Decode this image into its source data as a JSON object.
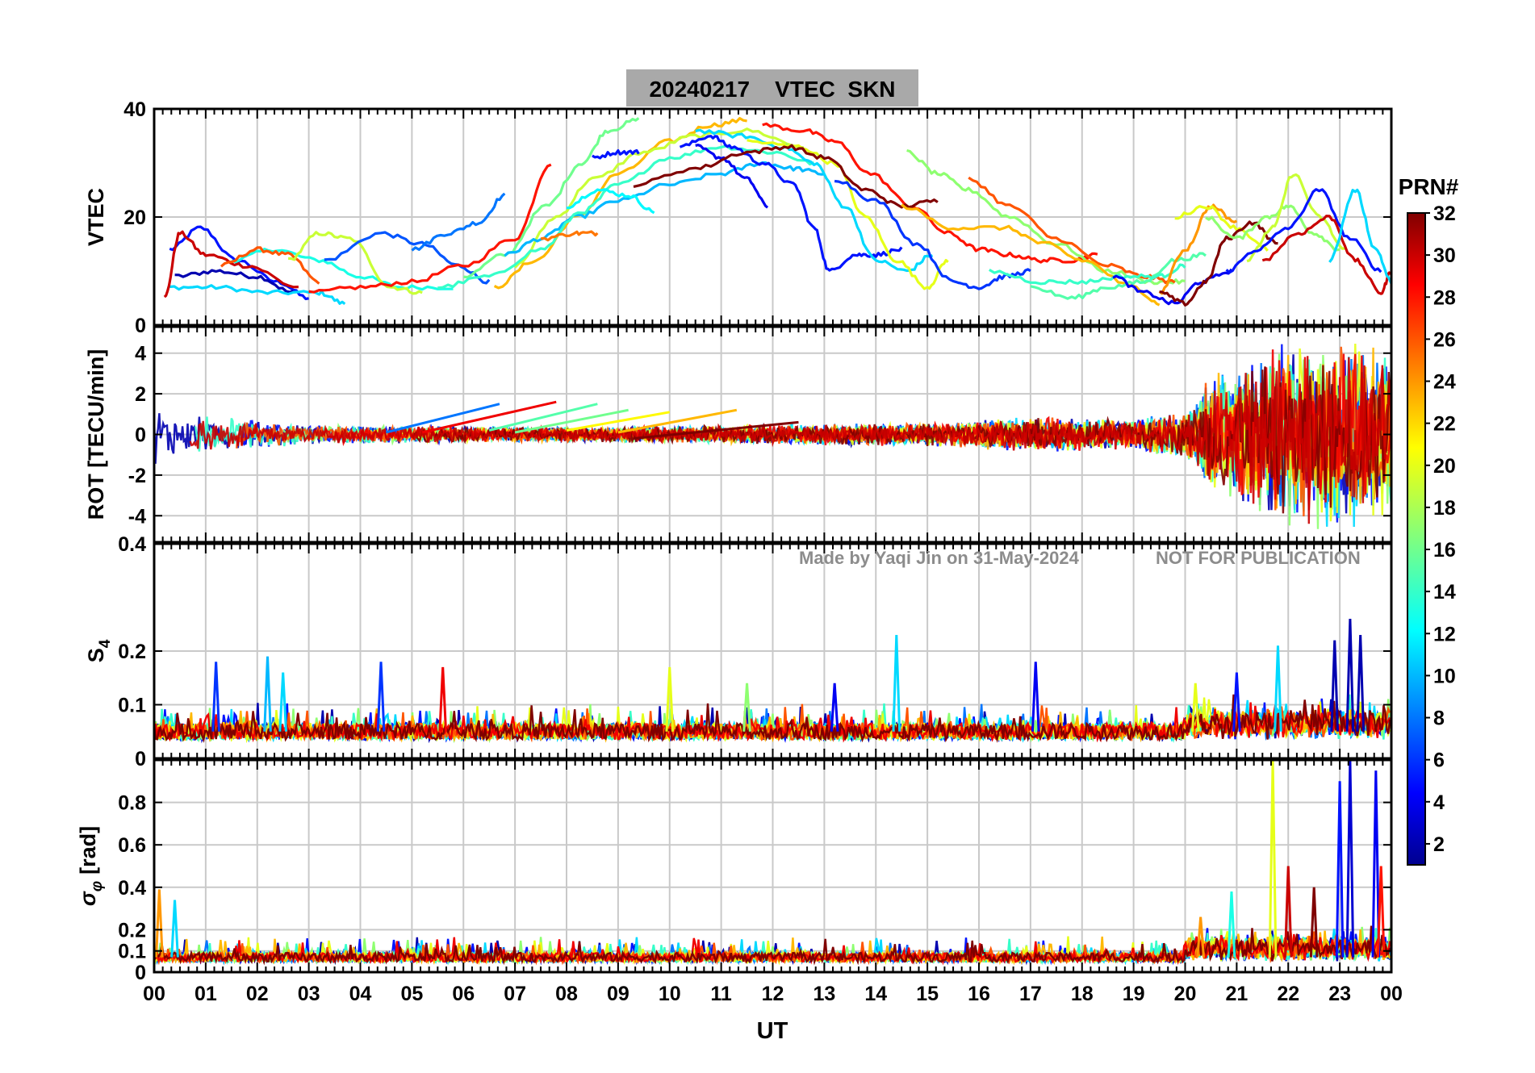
{
  "title": "20240217    VTEC  SKN",
  "watermark": {
    "left": "Made by Yaqi Jin on 31-May-2024",
    "right": "NOT FOR PUBLICATION"
  },
  "xlabel": "UT",
  "xticks": [
    "00",
    "01",
    "02",
    "03",
    "04",
    "05",
    "06",
    "07",
    "08",
    "09",
    "10",
    "11",
    "12",
    "13",
    "14",
    "15",
    "16",
    "17",
    "18",
    "19",
    "20",
    "21",
    "22",
    "23",
    "00"
  ],
  "colorbar": {
    "title": "PRN#",
    "ticks": [
      "2",
      "4",
      "6",
      "8",
      "10",
      "12",
      "14",
      "16",
      "18",
      "20",
      "22",
      "24",
      "26",
      "28",
      "30",
      "32"
    ],
    "range": [
      1,
      32
    ],
    "colormap": "jet"
  },
  "panels": [
    {
      "id": "vtec",
      "ylabel": "VTEC",
      "ylim": [
        0,
        40
      ],
      "yticks": [
        0,
        20,
        40
      ],
      "ytick_labels": [
        "0",
        "20",
        "40"
      ]
    },
    {
      "id": "rot",
      "ylabel": "ROT [TECU/min]",
      "ylim": [
        -5.3,
        5.3
      ],
      "yticks": [
        -4,
        -2,
        0,
        2,
        4
      ],
      "ytick_labels": [
        "-4",
        "-2",
        "0",
        "2",
        "4"
      ]
    },
    {
      "id": "s4",
      "ylabel": "S",
      "ylabel_sub": "4",
      "ylim": [
        0,
        0.4
      ],
      "yticks": [
        0,
        0.1,
        0.2,
        0.4
      ],
      "ytick_labels": [
        "0",
        "0.1",
        "0.2",
        "0.4"
      ]
    },
    {
      "id": "sigma",
      "ylabel": "σ",
      "ylabel_sub": "φ",
      "ylabel_suffix": "[rad]",
      "ylim": [
        0,
        1
      ],
      "yticks": [
        0,
        0.1,
        0.2,
        0.4,
        0.6,
        0.8
      ],
      "ytick_labels": [
        "0",
        "0.1",
        "0.2",
        "0.4",
        "0.6",
        "0.8"
      ]
    }
  ],
  "chart_data": {
    "type": "line",
    "x_unit": "UT hours",
    "xlim": [
      0,
      24
    ],
    "color_by": "PRN",
    "vtec_tracks": [
      {
        "prn": 5,
        "x": [
          0.3,
          0.9,
          1.6,
          2.4,
          3.0
        ],
        "y": [
          14,
          18,
          12,
          8,
          5
        ]
      },
      {
        "prn": 2,
        "x": [
          0.4,
          1.2,
          2.0,
          2.7
        ],
        "y": [
          9,
          10,
          9,
          6
        ]
      },
      {
        "prn": 11,
        "x": [
          0.3,
          1.2,
          2.2,
          3.2,
          3.7
        ],
        "y": [
          7,
          7,
          6,
          6,
          4
        ]
      },
      {
        "prn": 13,
        "x": [
          1.5,
          2.3,
          3.2,
          4.0,
          4.8,
          5.8
        ],
        "y": [
          12,
          14,
          12,
          9,
          7,
          7
        ]
      },
      {
        "prn": 30,
        "x": [
          0.2,
          0.5,
          1.0,
          1.8,
          2.8
        ],
        "y": [
          5,
          17,
          13,
          11,
          7
        ]
      },
      {
        "prn": 26,
        "x": [
          1.3,
          2.0,
          2.6,
          3.2
        ],
        "y": [
          11,
          14,
          13,
          8
        ]
      },
      {
        "prn": 19,
        "x": [
          2.6,
          3.2,
          3.8,
          4.6,
          5.2
        ],
        "y": [
          12,
          17,
          16,
          7,
          6
        ]
      },
      {
        "prn": 7,
        "x": [
          3.3,
          4.4,
          5.2,
          5.9,
          6.5
        ],
        "y": [
          12,
          17,
          15,
          11,
          8
        ]
      },
      {
        "prn": 28,
        "x": [
          3.0,
          4.0,
          5.0,
          6.0,
          7.0,
          7.7
        ],
        "y": [
          6,
          7,
          8,
          11,
          16,
          30
        ]
      },
      {
        "prn": 8,
        "x": [
          5.0,
          5.7,
          6.3,
          6.8
        ],
        "y": [
          14,
          17,
          19,
          24
        ]
      },
      {
        "prn": 23,
        "x": [
          6.6,
          7.4,
          8.2,
          9.0,
          10.0,
          10.8,
          11.5
        ],
        "y": [
          7,
          12,
          20,
          28,
          34,
          37,
          38
        ]
      },
      {
        "prn": 16,
        "x": [
          6.0,
          6.8,
          7.6,
          8.3,
          8.8,
          9.4
        ],
        "y": [
          9,
          13,
          22,
          30,
          36,
          38
        ]
      },
      {
        "prn": 19,
        "x": [
          7.0,
          7.8,
          8.5,
          9.5,
          10.5,
          11.5,
          12.6
        ],
        "y": [
          11,
          20,
          27,
          32,
          35,
          36,
          33
        ]
      },
      {
        "prn": 10,
        "x": [
          6.8,
          7.5,
          8.2,
          9.0,
          10.0,
          11.0,
          11.8,
          12.4,
          13.0
        ],
        "y": [
          13,
          16,
          20,
          23,
          26,
          28,
          30,
          29,
          28
        ]
      },
      {
        "prn": 14,
        "x": [
          5.5,
          6.5,
          7.5,
          8.3,
          9.0,
          10.0,
          11.0,
          12.0,
          12.8
        ],
        "y": [
          7,
          9,
          14,
          21,
          26,
          31,
          33,
          32,
          30
        ]
      },
      {
        "prn": 5,
        "x": [
          8.5,
          9.0,
          9.4
        ],
        "y": [
          31,
          32,
          32
        ]
      },
      {
        "prn": 25,
        "x": [
          7.5,
          8.2,
          8.6
        ],
        "y": [
          16,
          17,
          17
        ]
      },
      {
        "prn": 12,
        "x": [
          8.0,
          8.6,
          9.2,
          9.7
        ],
        "y": [
          22,
          25,
          24,
          21
        ]
      },
      {
        "prn": 5,
        "x": [
          10.2,
          10.8,
          11.2,
          11.8,
          12.4,
          12.8,
          13.1,
          13.6,
          14.0,
          14.5
        ],
        "y": [
          33,
          35,
          33,
          30,
          26,
          18,
          10,
          13,
          13,
          14
        ]
      },
      {
        "prn": 4,
        "x": [
          10.5,
          11.0,
          11.5,
          11.9
        ],
        "y": [
          33,
          31,
          27,
          22
        ]
      },
      {
        "prn": 11,
        "x": [
          10.5,
          11.4,
          12.2,
          12.8,
          13.4,
          14.0,
          14.6,
          15.1
        ],
        "y": [
          36,
          35,
          33,
          30,
          22,
          12,
          10,
          13
        ]
      },
      {
        "prn": 20,
        "x": [
          11.5,
          12.5,
          13.2,
          13.8,
          14.4,
          15.0,
          15.4
        ],
        "y": [
          34,
          33,
          30,
          20,
          12,
          7,
          12
        ]
      },
      {
        "prn": 28,
        "x": [
          11.8,
          12.6,
          13.2,
          13.9,
          14.7,
          15.4,
          16.0,
          16.6,
          17.2,
          17.8,
          18.3
        ],
        "y": [
          37,
          36,
          34,
          28,
          22,
          17,
          14,
          13,
          12,
          12,
          13
        ]
      },
      {
        "prn": 32,
        "x": [
          9.3,
          10.5,
          11.5,
          12.3,
          13.0,
          13.8,
          14.5,
          15.2
        ],
        "y": [
          26,
          29,
          32,
          33,
          31,
          25,
          22,
          23
        ]
      },
      {
        "prn": 6,
        "x": [
          13.2,
          14.0,
          14.8,
          15.5,
          16.0,
          16.5,
          17.0
        ],
        "y": [
          27,
          23,
          15,
          8,
          7,
          9,
          10
        ]
      },
      {
        "prn": 17,
        "x": [
          14.6,
          15.2,
          15.8,
          16.6,
          17.5,
          18.5,
          19.4,
          20.0
        ],
        "y": [
          32,
          28,
          25,
          20,
          15,
          10,
          8,
          8
        ]
      },
      {
        "prn": 26,
        "x": [
          15.8,
          16.6,
          17.5,
          18.5,
          19.2,
          19.8
        ],
        "y": [
          27,
          22,
          16,
          11,
          9,
          8
        ]
      },
      {
        "prn": 23,
        "x": [
          14.5,
          15.5,
          16.5,
          17.3,
          18.0,
          19.0,
          19.5
        ],
        "y": [
          22,
          18,
          18,
          15,
          12,
          7,
          4
        ]
      },
      {
        "prn": 15,
        "x": [
          17.0,
          17.8,
          18.5,
          19.2,
          19.8,
          20.4
        ],
        "y": [
          7,
          5,
          7,
          8,
          12,
          13
        ]
      },
      {
        "prn": 14,
        "x": [
          16.2,
          17.2,
          18.0,
          18.8,
          19.5,
          20.0
        ],
        "y": [
          10,
          8,
          8,
          9,
          9,
          11
        ]
      },
      {
        "prn": 4,
        "x": [
          18.6,
          19.2,
          19.8,
          20.3,
          20.9
        ],
        "y": [
          9,
          6,
          4,
          8,
          10
        ]
      },
      {
        "prn": 24,
        "x": [
          19.5,
          20.0,
          20.5,
          21.0
        ],
        "y": [
          6,
          14,
          22,
          19
        ]
      },
      {
        "prn": 20,
        "x": [
          19.8,
          20.4,
          21.0,
          21.6
        ],
        "y": [
          20,
          22,
          18,
          14
        ]
      },
      {
        "prn": 32,
        "x": [
          19.5,
          20.0,
          20.4,
          20.8,
          21.3,
          21.8
        ],
        "y": [
          6,
          4,
          8,
          16,
          19,
          15
        ]
      },
      {
        "prn": 17,
        "x": [
          20.4,
          21.0,
          21.6,
          22.0,
          22.5,
          23.0
        ],
        "y": [
          20,
          16,
          20,
          22,
          17,
          14
        ]
      },
      {
        "prn": 19,
        "x": [
          21.2,
          21.7,
          22.1,
          22.6,
          23.1
        ],
        "y": [
          12,
          18,
          28,
          20,
          14
        ]
      },
      {
        "prn": 5,
        "x": [
          20.8,
          21.4,
          22.0,
          22.6,
          23.2,
          23.8
        ],
        "y": [
          10,
          14,
          18,
          25,
          16,
          10
        ]
      },
      {
        "prn": 30,
        "x": [
          21.5,
          22.2,
          22.8,
          23.3,
          23.8,
          24.0
        ],
        "y": [
          12,
          17,
          20,
          12,
          6,
          10
        ]
      },
      {
        "prn": 11,
        "x": [
          22.8,
          23.3,
          23.7,
          24.0
        ],
        "y": [
          12,
          25,
          14,
          8
        ]
      }
    ],
    "rot_envelope": {
      "x": [
        0,
        1,
        3,
        6,
        9,
        12,
        15,
        17,
        19,
        20,
        20.5,
        21,
        22,
        23,
        24
      ],
      "amplitude": [
        1.5,
        1.0,
        0.5,
        0.4,
        0.4,
        0.5,
        0.6,
        0.9,
        0.8,
        1.2,
        3.0,
        3.5,
        4.8,
        5.0,
        4.0
      ]
    },
    "rot_drifts": [
      {
        "prn": 8,
        "x": [
          4.5,
          6.7
        ],
        "y": [
          0.1,
          1.5
        ]
      },
      {
        "prn": 29,
        "x": [
          5.2,
          7.8
        ],
        "y": [
          0.1,
          1.6
        ]
      },
      {
        "prn": 15,
        "x": [
          6.5,
          8.6
        ],
        "y": [
          0.2,
          1.5
        ]
      },
      {
        "prn": 16,
        "x": [
          7.0,
          9.2
        ],
        "y": [
          0.1,
          1.2
        ]
      },
      {
        "prn": 21,
        "x": [
          8.0,
          10.0
        ],
        "y": [
          0.2,
          1.1
        ]
      },
      {
        "prn": 23,
        "x": [
          9.0,
          11.3
        ],
        "y": [
          0.1,
          1.2
        ]
      },
      {
        "prn": 32,
        "x": [
          9.3,
          12.5
        ],
        "y": [
          -0.2,
          0.6
        ]
      }
    ],
    "s4_baseline": 0.05,
    "s4_spikes": [
      {
        "prn": 6,
        "x": 1.2,
        "y": 0.18
      },
      {
        "prn": 10,
        "x": 2.2,
        "y": 0.19
      },
      {
        "prn": 11,
        "x": 2.5,
        "y": 0.16
      },
      {
        "prn": 6,
        "x": 4.4,
        "y": 0.18
      },
      {
        "prn": 29,
        "x": 5.6,
        "y": 0.17
      },
      {
        "prn": 20,
        "x": 10.0,
        "y": 0.17
      },
      {
        "prn": 17,
        "x": 11.5,
        "y": 0.14
      },
      {
        "prn": 4,
        "x": 13.2,
        "y": 0.14
      },
      {
        "prn": 11,
        "x": 14.4,
        "y": 0.23
      },
      {
        "prn": 4,
        "x": 17.1,
        "y": 0.18
      },
      {
        "prn": 20,
        "x": 20.2,
        "y": 0.14
      },
      {
        "prn": 5,
        "x": 21.0,
        "y": 0.16
      },
      {
        "prn": 11,
        "x": 21.8,
        "y": 0.21
      },
      {
        "prn": 2,
        "x": 22.9,
        "y": 0.22
      },
      {
        "prn": 2,
        "x": 23.2,
        "y": 0.26
      },
      {
        "prn": 2,
        "x": 23.4,
        "y": 0.23
      }
    ],
    "sigma_baseline": 0.07,
    "sigma_spikes": [
      {
        "prn": 24,
        "x": 0.1,
        "y": 0.39
      },
      {
        "prn": 11,
        "x": 0.4,
        "y": 0.34
      },
      {
        "prn": 24,
        "x": 20.3,
        "y": 0.26
      },
      {
        "prn": 13,
        "x": 20.9,
        "y": 0.38
      },
      {
        "prn": 20,
        "x": 21.7,
        "y": 1.0
      },
      {
        "prn": 30,
        "x": 22.0,
        "y": 0.5
      },
      {
        "prn": 32,
        "x": 22.5,
        "y": 0.4
      },
      {
        "prn": 5,
        "x": 23.0,
        "y": 0.9
      },
      {
        "prn": 3,
        "x": 23.2,
        "y": 1.0
      },
      {
        "prn": 4,
        "x": 23.7,
        "y": 0.95
      },
      {
        "prn": 28,
        "x": 23.8,
        "y": 0.5
      }
    ]
  }
}
